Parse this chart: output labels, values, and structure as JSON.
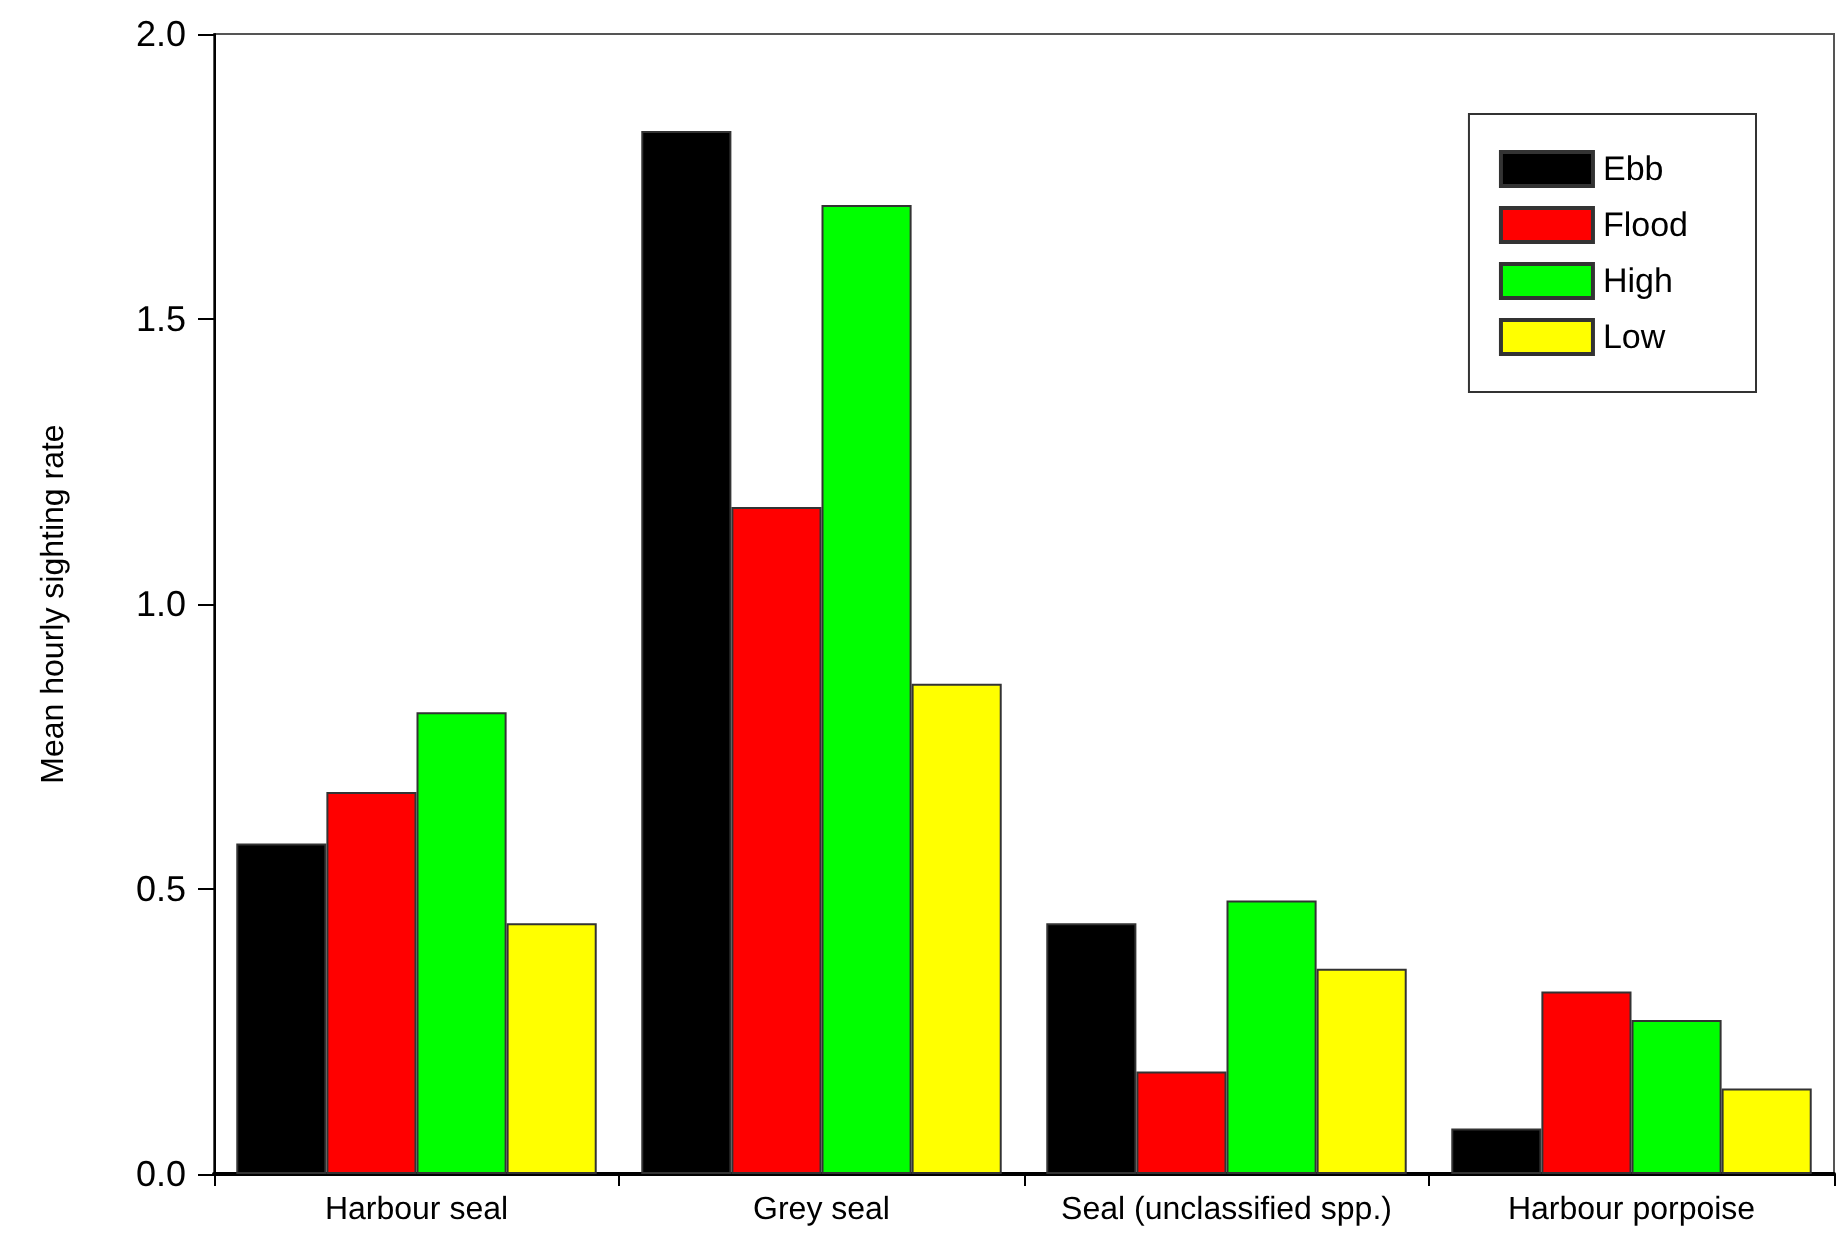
{
  "chart_data": {
    "type": "bar",
    "ylabel": "Mean hourly sighting rate",
    "categories": [
      "Harbour seal",
      "Grey seal",
      "Seal (unclassified spp.)",
      "Harbour porpoise"
    ],
    "series": [
      {
        "name": "Ebb",
        "color": "#000000",
        "values": [
          0.58,
          1.83,
          0.44,
          0.08
        ]
      },
      {
        "name": "Flood",
        "color": "#ff0000",
        "values": [
          0.67,
          1.17,
          0.18,
          0.32
        ]
      },
      {
        "name": "High",
        "color": "#00ff00",
        "values": [
          0.81,
          1.7,
          0.48,
          0.27
        ]
      },
      {
        "name": "Low",
        "color": "#ffff00",
        "values": [
          0.44,
          0.86,
          0.36,
          0.15
        ]
      }
    ],
    "ylim": [
      0,
      2
    ],
    "yticks": [
      {
        "value": 0,
        "label": "0.0"
      },
      {
        "value": 0.5,
        "label": "0.5"
      },
      {
        "value": 1,
        "label": "1.0"
      },
      {
        "value": 1.5,
        "label": "1.5"
      },
      {
        "value": 2,
        "label": "2.0"
      }
    ],
    "grid": false,
    "legend": "top right"
  }
}
